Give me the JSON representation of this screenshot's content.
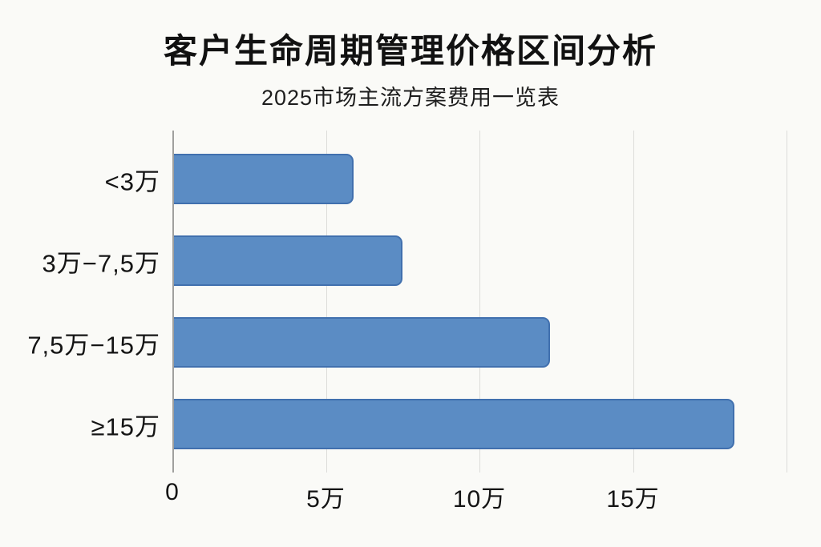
{
  "page": {
    "background_color": "#fafaf7"
  },
  "header": {
    "title": "客户生命周期管理价格区间分析",
    "subtitle": "2025市场主流方案费用一览表"
  },
  "chart_data": {
    "type": "bar",
    "orientation": "horizontal",
    "title": "客户生命周期管理价格区间分析",
    "subtitle": "2025市场主流方案费用一览表",
    "categories": [
      "<3万",
      "3万−7,5万",
      "7,5万−15万",
      "≥15万"
    ],
    "values": [
      5.9,
      7.5,
      12.3,
      18.3
    ],
    "unit": "万",
    "xlabel": "",
    "ylabel": "",
    "xlim": [
      0,
      20
    ],
    "x_ticks": [
      {
        "value": 0,
        "label": "0"
      },
      {
        "value": 5,
        "label": "5万"
      },
      {
        "value": 10,
        "label": "10万"
      },
      {
        "value": 15,
        "label": "15万"
      }
    ],
    "gridline_values": [
      0,
      5,
      10,
      15,
      20
    ],
    "grid": true,
    "legend_position": "none",
    "colors": {
      "bar_fill": "#5b8cc4",
      "bar_border": "#4170ae",
      "gridline": "#dcdcda",
      "axis_line": "#a0a09e",
      "text": "#141414",
      "background": "#fafaf7"
    }
  }
}
